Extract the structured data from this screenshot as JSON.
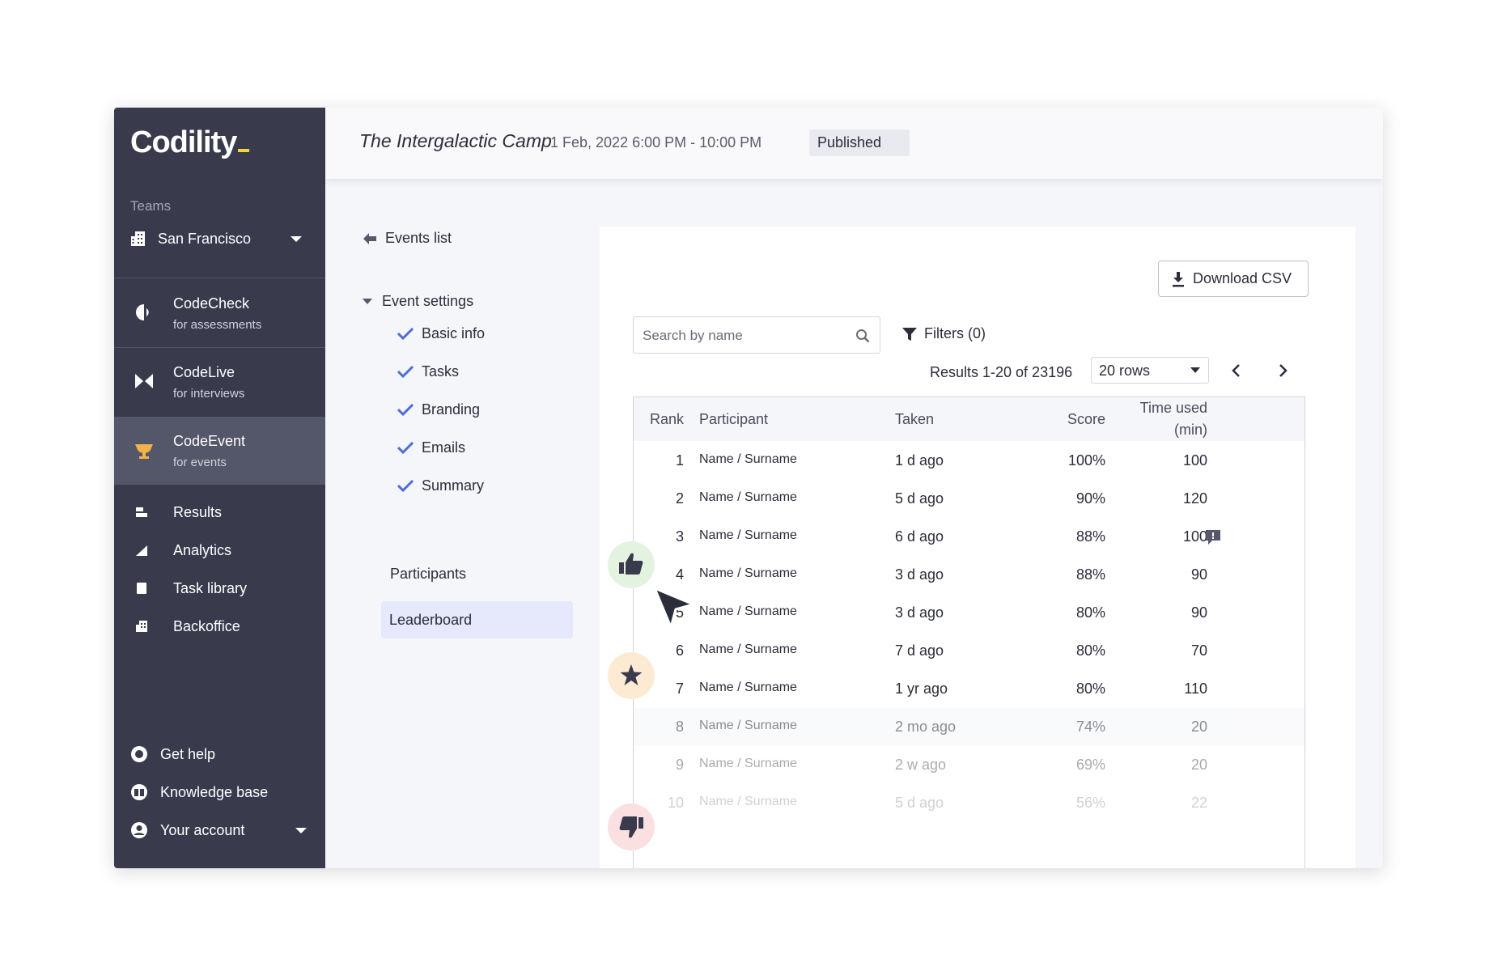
{
  "sidebar": {
    "logo": "Codility",
    "teams_label": "Teams",
    "team_name": "San Francisco",
    "products": [
      {
        "title": "CodeCheck",
        "subtitle": "for assessments",
        "icon": "codecheck-icon",
        "active": false
      },
      {
        "title": "CodeLive",
        "subtitle": "for interviews",
        "icon": "codelive-icon",
        "active": false
      },
      {
        "title": "CodeEvent",
        "subtitle": "for events",
        "icon": "trophy-icon",
        "active": true
      }
    ],
    "nav": [
      {
        "label": "Results",
        "icon": "results-icon"
      },
      {
        "label": "Analytics",
        "icon": "analytics-icon"
      },
      {
        "label": "Task library",
        "icon": "task-library-icon"
      },
      {
        "label": "Backoffice",
        "icon": "building-icon"
      }
    ],
    "bottom": [
      {
        "label": "Get help",
        "icon": "help-icon"
      },
      {
        "label": "Knowledge base",
        "icon": "book-icon"
      },
      {
        "label": "Your account",
        "icon": "account-icon"
      }
    ]
  },
  "header": {
    "title": "The Intergalactic Camp",
    "date": "1 Feb, 2022 6:00 PM - 10:00 PM",
    "status": "Published"
  },
  "left_nav": {
    "back_label": "Events list",
    "settings_label": "Event settings",
    "steps": [
      "Basic info",
      "Tasks",
      "Branding",
      "Emails",
      "Summary"
    ],
    "participants_label": "Participants",
    "leaderboard_label": "Leaderboard"
  },
  "panel": {
    "download_label": "Download CSV",
    "search_placeholder": "Search by name",
    "filters_label": "Filters (0)",
    "results_text": "Results 1-20 of 23196",
    "rows_select": "20 rows"
  },
  "table": {
    "headers": {
      "rank": "Rank",
      "participant": "Participant",
      "taken": "Taken",
      "score": "Score",
      "time_line1": "Time used",
      "time_line2": "(min)"
    },
    "rows": [
      {
        "rank": "1",
        "name": "Name / Surname",
        "taken": "1 d ago",
        "score": "100%",
        "time": "100"
      },
      {
        "rank": "2",
        "name": "Name / Surname",
        "taken": "5 d ago",
        "score": "90%",
        "time": "120"
      },
      {
        "rank": "3",
        "name": "Name / Surname",
        "taken": "6 d ago",
        "score": "88%",
        "time": "100"
      },
      {
        "rank": "4",
        "name": "Name / Surname",
        "taken": "3 d ago",
        "score": "88%",
        "time": "90"
      },
      {
        "rank": "5",
        "name": "Name / Surname",
        "taken": "3 d ago",
        "score": "80%",
        "time": "90"
      },
      {
        "rank": "6",
        "name": "Name / Surname",
        "taken": "7 d ago",
        "score": "80%",
        "time": "70"
      },
      {
        "rank": "7",
        "name": "Name / Surname",
        "taken": "1 yr ago",
        "score": "80%",
        "time": "110"
      },
      {
        "rank": "8",
        "name": "Name / Surname",
        "taken": "2 mo ago",
        "score": "74%",
        "time": "20"
      },
      {
        "rank": "9",
        "name": "Name / Surname",
        "taken": "2 w ago",
        "score": "69%",
        "time": "20"
      },
      {
        "rank": "10",
        "name": "Name / Surname",
        "taken": "5 d ago",
        "score": "56%",
        "time": "22"
      }
    ]
  },
  "colors": {
    "sidebar_bg": "#393b4d",
    "sidebar_active": "#545669",
    "accent_yellow": "#f7d23e",
    "trophy": "#f2b24a",
    "check_blue": "#4b6edb",
    "leaderboard_bg": "#e6e8fb",
    "like_badge": "#e4f3df",
    "star_badge": "#fcebd2",
    "dislike_badge": "#fbe0e2"
  }
}
